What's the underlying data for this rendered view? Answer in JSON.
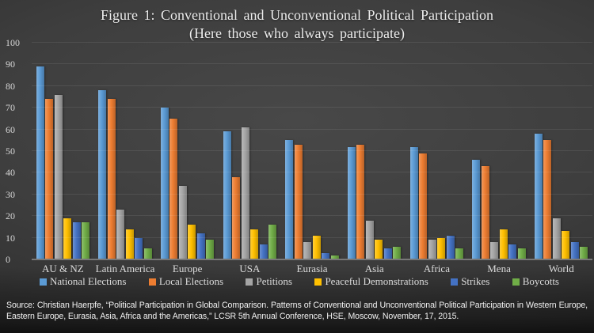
{
  "title": {
    "line1": "Figure 1: Conventional and Unconventional Political Participation",
    "line2": "(Here those who always participate)"
  },
  "chart_data": {
    "type": "bar",
    "title": "Figure 1: Conventional and Unconventional Political Participation (Here those who always participate)",
    "categories": [
      "AU & NZ",
      "Latin America",
      "Europe",
      "USA",
      "Eurasia",
      "Asia",
      "Africa",
      "Mena",
      "World"
    ],
    "series": [
      {
        "name": "National Elections",
        "color": "#5B9BD5",
        "values": [
          89,
          78,
          70,
          59,
          55,
          52,
          52,
          46,
          58
        ]
      },
      {
        "name": "Local Elections",
        "color": "#ED7D31",
        "values": [
          74,
          74,
          65,
          38,
          53,
          53,
          49,
          43,
          55
        ]
      },
      {
        "name": "Petitions",
        "color": "#A5A5A5",
        "values": [
          76,
          23,
          34,
          61,
          8,
          18,
          9,
          8,
          19
        ]
      },
      {
        "name": "Peaceful Demonstrations",
        "color": "#FFC000",
        "values": [
          19,
          14,
          16,
          14,
          11,
          9,
          10,
          14,
          13
        ]
      },
      {
        "name": "Strikes",
        "color": "#4472C4",
        "values": [
          17,
          10,
          12,
          7,
          3,
          5,
          11,
          7,
          8
        ]
      },
      {
        "name": "Boycotts",
        "color": "#70AD47",
        "values": [
          17,
          5,
          9,
          16,
          2,
          6,
          5,
          5,
          6
        ]
      }
    ],
    "xlabel": "",
    "ylabel": "",
    "ylim": [
      0,
      100
    ],
    "ytick_interval": 10,
    "grid": true,
    "legend_position": "bottom"
  },
  "footer": {
    "line1": "Source: Christian Haerpfe, “Political Participation in Global Comparison. Patterns of Conventional and Unconventional Political Participation in Western Europe,",
    "line2": "Eastern Europe, Eurasia, Asia, Africa and the Americas,” LCSR 5th Annual Conference, HSE, Moscow, November, 17, 2015."
  }
}
